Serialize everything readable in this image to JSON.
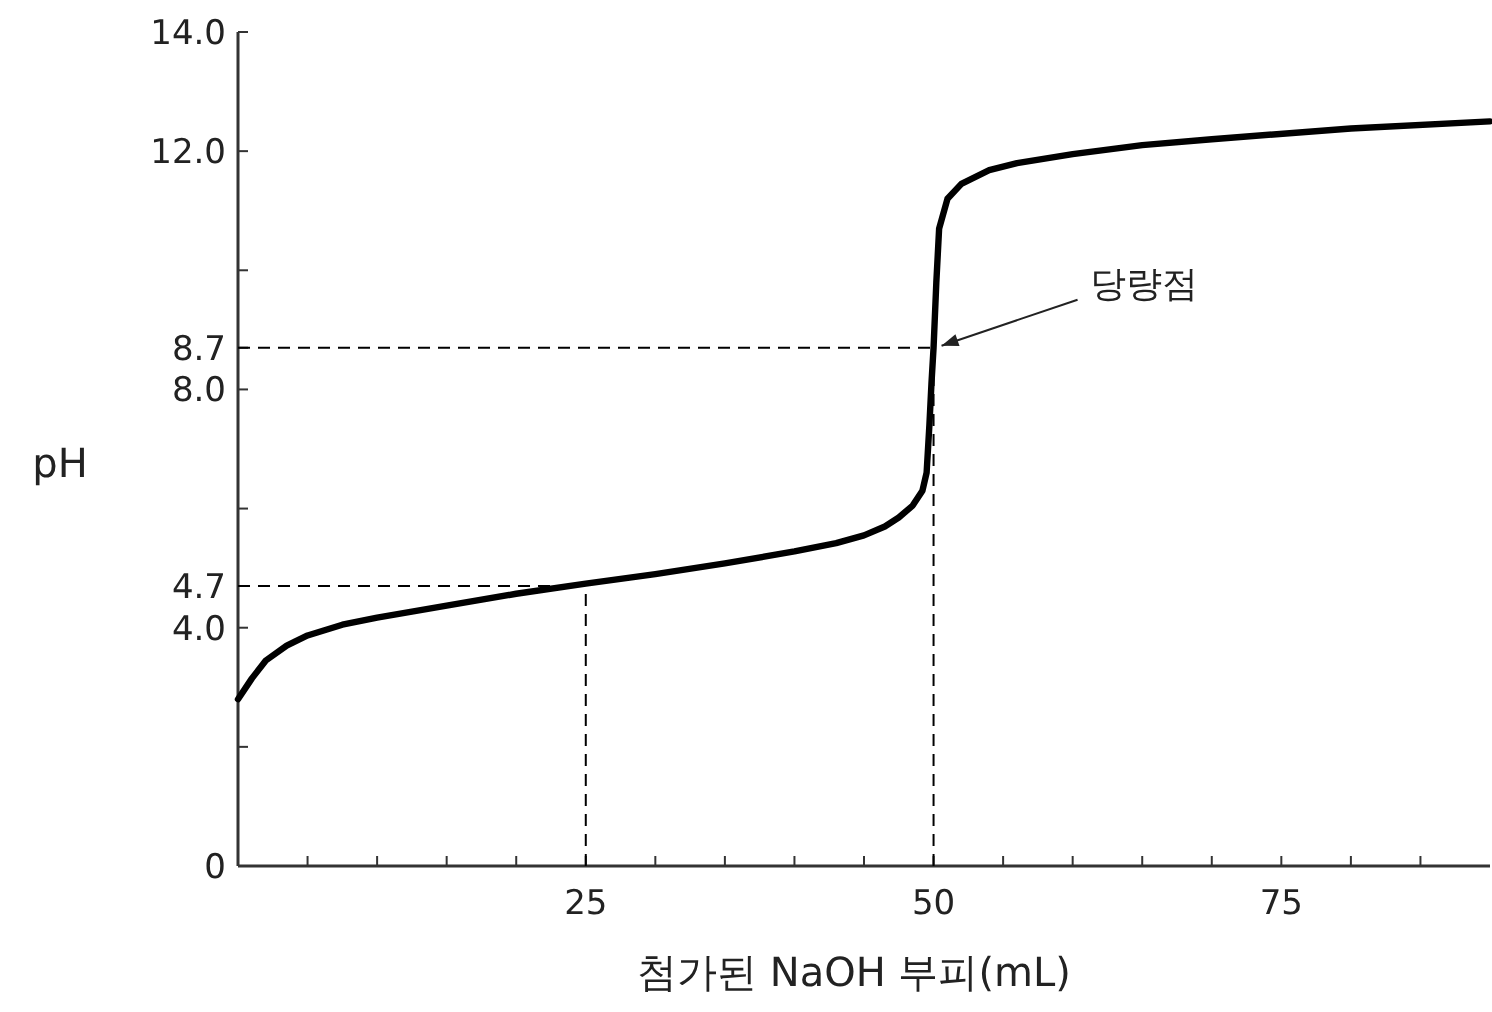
{
  "chart_data": {
    "type": "line",
    "xlabel": "첨가된 NaOH 부피(mL)",
    "ylabel": "pH",
    "x": [
      0,
      1,
      2,
      3.5,
      5,
      7.5,
      10,
      15,
      20,
      25,
      30,
      35,
      40,
      43,
      45,
      46.5,
      47.5,
      48.5,
      49.2,
      49.5,
      49.7,
      49.85,
      50,
      50.2,
      50.4,
      51,
      52,
      54,
      56,
      60,
      65,
      70,
      80,
      90
    ],
    "series": [
      {
        "color": "#000000",
        "values": [
          2.8,
          3.15,
          3.45,
          3.7,
          3.87,
          4.05,
          4.17,
          4.37,
          4.57,
          4.74,
          4.9,
          5.08,
          5.28,
          5.42,
          5.55,
          5.7,
          5.85,
          6.05,
          6.3,
          6.6,
          7.4,
          8.1,
          8.7,
          9.8,
          10.7,
          11.2,
          11.45,
          11.68,
          11.8,
          11.95,
          12.1,
          12.2,
          12.38,
          12.5
        ]
      }
    ],
    "xlim": [
      0,
      90
    ],
    "ylim": [
      0,
      14
    ],
    "xticks": [
      {
        "value": 5,
        "label": null
      },
      {
        "value": 10,
        "label": null
      },
      {
        "value": 15,
        "label": null
      },
      {
        "value": 20,
        "label": null
      },
      25,
      {
        "value": 30,
        "label": null
      },
      {
        "value": 35,
        "label": null
      },
      {
        "value": 40,
        "label": null
      },
      {
        "value": 45,
        "label": null
      },
      50,
      {
        "value": 55,
        "label": null
      },
      {
        "value": 60,
        "label": null
      },
      {
        "value": 65,
        "label": null
      },
      {
        "value": 70,
        "label": null
      },
      75,
      {
        "value": 80,
        "label": null
      },
      {
        "value": 85,
        "label": null
      }
    ],
    "yticks": [
      {
        "value": 0,
        "label": "0"
      },
      {
        "value": 2,
        "label": null
      },
      {
        "value": 4,
        "label": "4.0"
      },
      {
        "value": 4.7,
        "label": "4.7"
      },
      {
        "value": 6,
        "label": null
      },
      {
        "value": 8,
        "label": "8.0"
      },
      {
        "value": 8.7,
        "label": "8.7"
      },
      {
        "value": 10,
        "label": null
      },
      {
        "value": 12,
        "label": "12.0"
      },
      {
        "value": 14,
        "label": "14.0"
      }
    ],
    "ref_lines": [
      {
        "axis": "y",
        "value": 4.7,
        "line_style": "dashed"
      },
      {
        "axis": "x",
        "value": 25,
        "line_style": "dashed"
      },
      {
        "axis": "y",
        "value": 8.7,
        "line_style": "dashed"
      },
      {
        "axis": "x",
        "value": 50,
        "line_style": "dashed"
      }
    ],
    "annotations": [
      {
        "text": "당량점",
        "x": 50,
        "y": 8.7
      }
    ],
    "line_style": "solid",
    "marker": "none"
  }
}
